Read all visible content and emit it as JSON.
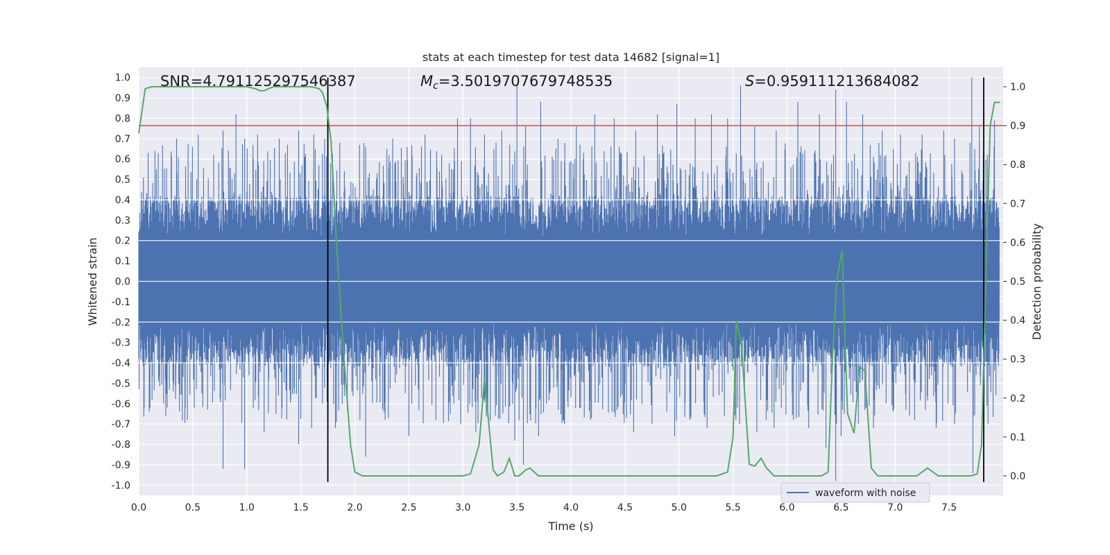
{
  "chart_data": {
    "type": "line",
    "title": "stats at each timestep for test data 14682 [signal=1]",
    "xlabel": "Time (s)",
    "ylabel_left": "Whitened strain",
    "ylabel_right": "Detection probability",
    "xlim": [
      0.0,
      8.0
    ],
    "ylim_left": [
      -1.05,
      1.05
    ],
    "ylim_right": [
      -0.05,
      1.05
    ],
    "xticks": [
      0.0,
      0.5,
      1.0,
      1.5,
      2.0,
      2.5,
      3.0,
      3.5,
      4.0,
      4.5,
      5.0,
      5.5,
      6.0,
      6.5,
      7.0,
      7.5
    ],
    "xtick_labels": [
      "0.0",
      "0.5",
      "1.0",
      "1.5",
      "2.0",
      "2.5",
      "3.0",
      "3.5",
      "4.0",
      "4.5",
      "5.0",
      "5.5",
      "6.0",
      "6.5",
      "7.0",
      "7.5"
    ],
    "yticks_left": [
      1.0,
      0.9,
      0.8,
      0.7,
      0.6,
      0.5,
      0.4,
      0.3,
      0.2,
      0.1,
      0.0,
      -0.1,
      -0.2,
      -0.3,
      -0.4,
      -0.5,
      -0.6,
      -0.7,
      -0.8,
      -0.9,
      -1.0
    ],
    "ytick_labels_left": [
      "1.0",
      "0.9",
      "0.8",
      "0.7",
      "0.6",
      "0.5",
      "0.4",
      "0.3",
      "0.2",
      "0.1",
      "0.0",
      "-0.1",
      "-0.2",
      "-0.3",
      "-0.4",
      "-0.5",
      "-0.6",
      "-0.7",
      "-0.8",
      "-0.9",
      "-1.0"
    ],
    "yticks_right": [
      1.0,
      0.9,
      0.8,
      0.7,
      0.6,
      0.5,
      0.4,
      0.3,
      0.2,
      0.1,
      0.0
    ],
    "ytick_labels_right": [
      "1.0",
      "0.9",
      "0.8",
      "0.7",
      "0.6",
      "0.5",
      "0.4",
      "0.3",
      "0.2",
      "0.1",
      "0.0"
    ],
    "threshold": {
      "value": 0.9,
      "axis": "right",
      "color": "#c44e52"
    },
    "vlines": {
      "x": [
        1.75,
        7.82
      ],
      "color": "#000000"
    },
    "annotations": {
      "snr": "SNR=4.791125297546387",
      "mc_symbol": "M",
      "mc_sub": "c",
      "mc_value": "=3.5019707679748535",
      "s_symbol": "S",
      "s_value": "=0.959111213684082"
    },
    "legend": {
      "label": "waveform with noise",
      "location": "lower right"
    },
    "series": [
      {
        "name": "waveform with noise",
        "axis": "left",
        "color": "#4c72b0",
        "description": "dense noisy whitened strain waveform, mostly within ±0.4 with peaks up to ±1.0",
        "peaks_x": [
          0.15,
          0.35,
          0.55,
          0.78,
          0.9,
          0.98,
          1.1,
          1.3,
          1.48,
          1.62,
          1.72,
          1.86,
          2.1,
          2.35,
          2.65,
          2.95,
          3.07,
          3.2,
          3.36,
          3.5,
          3.58,
          3.72,
          3.88,
          4.05,
          4.22,
          4.4,
          4.6,
          4.8,
          4.98,
          5.15,
          5.3,
          5.45,
          5.57,
          5.7,
          5.9,
          6.1,
          6.3,
          6.45,
          6.55,
          6.7,
          6.88,
          7.05,
          7.25,
          7.45,
          7.55,
          7.71,
          7.78,
          7.92
        ],
        "peaks_y": [
          0.64,
          0.7,
          0.72,
          0.74,
          0.82,
          0.7,
          0.72,
          0.7,
          0.74,
          0.72,
          0.7,
          0.68,
          0.66,
          0.7,
          0.72,
          0.8,
          0.8,
          0.72,
          0.74,
          0.97,
          0.76,
          0.88,
          0.7,
          0.76,
          0.82,
          0.8,
          0.74,
          0.82,
          0.87,
          0.8,
          0.82,
          0.8,
          0.96,
          0.76,
          0.74,
          0.88,
          0.82,
          0.94,
          0.88,
          0.82,
          0.74,
          0.72,
          0.72,
          0.74,
          0.7,
          1.0,
          0.76,
          0.79
        ],
        "troughs_x": [
          0.05,
          0.25,
          0.45,
          0.78,
          0.98,
          1.16,
          1.48,
          1.6,
          1.7,
          1.82,
          2.1,
          2.28,
          2.5,
          2.75,
          2.98,
          3.12,
          3.3,
          3.48,
          3.56,
          3.7,
          3.94,
          4.18,
          4.38,
          4.58,
          4.75,
          4.96,
          5.1,
          5.26,
          5.42,
          5.56,
          5.72,
          5.88,
          6.06,
          6.2,
          6.36,
          6.45,
          6.5,
          6.66,
          6.8,
          6.98,
          7.18,
          7.38,
          7.55,
          7.72,
          7.86
        ],
        "troughs_y": [
          -0.62,
          -0.66,
          -0.68,
          -0.92,
          -0.92,
          -0.74,
          -0.8,
          -0.72,
          -0.6,
          -0.72,
          -0.86,
          -0.68,
          -0.76,
          -0.68,
          -0.7,
          -0.74,
          -0.66,
          -0.78,
          -0.9,
          -0.76,
          -0.7,
          -0.68,
          -0.64,
          -0.74,
          -0.7,
          -0.76,
          -0.68,
          -0.72,
          -0.66,
          -0.7,
          -0.74,
          -0.72,
          -0.68,
          -0.72,
          -0.82,
          -0.98,
          -0.76,
          -0.7,
          -0.72,
          -0.64,
          -0.68,
          -0.72,
          -0.7,
          -0.94,
          -0.7
        ]
      },
      {
        "name": "detection probability",
        "axis": "right",
        "color": "#55a868",
        "x": [
          0.0,
          0.06,
          0.12,
          0.2,
          0.3,
          0.4,
          0.5,
          0.6,
          0.7,
          0.8,
          0.9,
          1.0,
          1.08,
          1.12,
          1.16,
          1.2,
          1.25,
          1.3,
          1.4,
          1.5,
          1.6,
          1.67,
          1.7,
          1.74,
          1.78,
          1.83,
          1.9,
          1.96,
          2.0,
          2.07,
          2.2,
          2.5,
          2.8,
          3.0,
          3.07,
          3.15,
          3.2,
          3.28,
          3.32,
          3.38,
          3.43,
          3.48,
          3.52,
          3.58,
          3.62,
          3.7,
          3.76,
          3.9,
          4.0,
          4.2,
          4.4,
          4.6,
          4.8,
          5.0,
          5.2,
          5.35,
          5.45,
          5.5,
          5.53,
          5.58,
          5.65,
          5.7,
          5.76,
          5.81,
          5.88,
          5.95,
          6.05,
          6.2,
          6.32,
          6.38,
          6.42,
          6.46,
          6.51,
          6.56,
          6.62,
          6.67,
          6.72,
          6.78,
          6.84,
          6.9,
          7.0,
          7.1,
          7.2,
          7.3,
          7.4,
          7.5,
          7.62,
          7.7,
          7.76,
          7.8,
          7.84,
          7.88,
          7.92,
          7.97
        ],
        "y": [
          0.88,
          0.995,
          1.0,
          1.0,
          1.0,
          1.0,
          1.0,
          1.0,
          1.0,
          1.0,
          1.0,
          1.0,
          0.995,
          0.99,
          0.99,
          0.995,
          1.0,
          1.0,
          1.0,
          1.0,
          1.0,
          0.995,
          0.985,
          0.95,
          0.86,
          0.6,
          0.3,
          0.08,
          0.01,
          0.0,
          0.0,
          0.0,
          0.0,
          0.0,
          0.005,
          0.08,
          0.25,
          0.015,
          0.0,
          0.01,
          0.045,
          0.0,
          0.0,
          0.015,
          0.02,
          0.0,
          0.0,
          0.0,
          0.0,
          0.0,
          0.0,
          0.0,
          0.0,
          0.0,
          0.0,
          0.0,
          0.01,
          0.1,
          0.4,
          0.33,
          0.03,
          0.025,
          0.045,
          0.02,
          0.0,
          0.0,
          0.0,
          0.0,
          0.0,
          0.01,
          0.3,
          0.5,
          0.58,
          0.16,
          0.11,
          0.28,
          0.27,
          0.02,
          0.0,
          0.0,
          0.0,
          0.0,
          0.0,
          0.02,
          0.0,
          0.0,
          0.0,
          0.0,
          0.005,
          0.08,
          0.5,
          0.9,
          0.96,
          0.96
        ]
      }
    ]
  }
}
